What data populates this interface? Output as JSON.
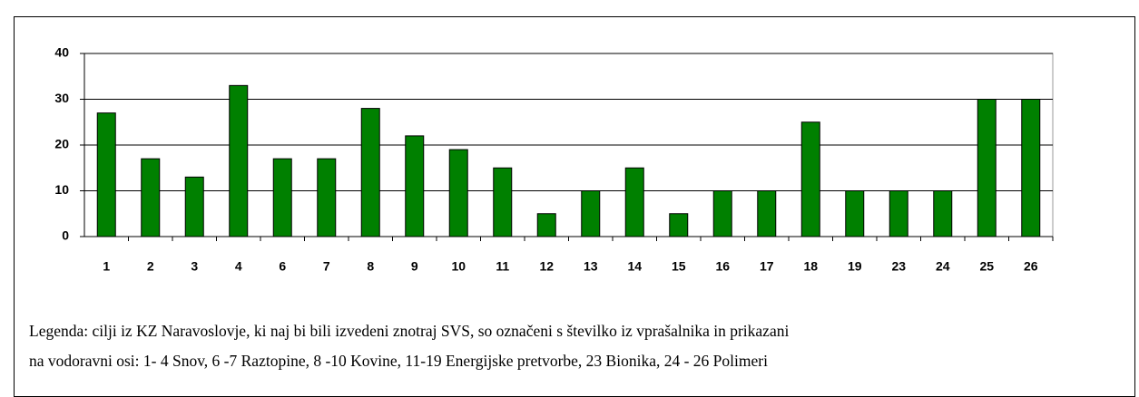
{
  "chart_data": {
    "type": "bar",
    "categories": [
      "1",
      "2",
      "3",
      "4",
      "6",
      "7",
      "8",
      "9",
      "10",
      "11",
      "12",
      "13",
      "14",
      "15",
      "16",
      "17",
      "18",
      "19",
      "23",
      "24",
      "25",
      "26"
    ],
    "values": [
      27,
      17,
      13,
      33,
      17,
      17,
      28,
      22,
      19,
      15,
      5,
      10,
      15,
      5,
      10,
      10,
      25,
      10,
      10,
      10,
      30,
      30
    ],
    "color": "#008000",
    "ylim": [
      0,
      40
    ],
    "yticks": [
      0,
      10,
      20,
      30,
      40
    ],
    "grid": true,
    "note_lines": [
      "Legenda: cilji iz KZ Naravoslovje, ki naj bi bili izvedeni znotraj SVS, so označeni s številko iz vprašalnika in prikazani",
      "na vodoravni osi: 1- 4 Snov, 6 -7 Raztopine, 8 -10 Kovine, 11-19 Energijske pretvorbe, 23 Bionika, 24 - 26 Polimeri"
    ]
  }
}
